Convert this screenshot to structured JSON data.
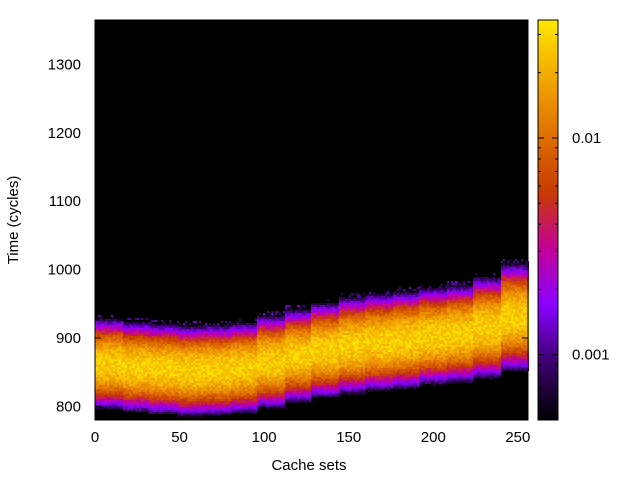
{
  "chart_data": {
    "type": "heatmap",
    "title": "",
    "xlabel": "Cache sets",
    "ylabel": "Time (cycles)",
    "xlim": [
      0,
      256
    ],
    "ylim": [
      780,
      1365
    ],
    "x_ticks": [
      0,
      50,
      100,
      150,
      200,
      250
    ],
    "y_ticks": [
      800,
      900,
      1000,
      1100,
      1200,
      1300
    ],
    "colorbar": {
      "scale": "log",
      "range": [
        0.0005,
        0.035
      ],
      "ticks": [
        {
          "value": 0.001,
          "label": "0.001"
        },
        {
          "value": 0.01,
          "label": "0.01"
        }
      ],
      "colormap": [
        "#000000",
        "#3c006e",
        "#8a00ff",
        "#c4009a",
        "#c83c00",
        "#e07000",
        "#f2a800",
        "#ffe800"
      ]
    },
    "background": "#000000",
    "distribution": {
      "description_of_values": "per-column time distribution: center (mode) and spread in cycles",
      "segments": [
        {
          "x": [
            0,
            16
          ],
          "center": 862,
          "spread": 42
        },
        {
          "x": [
            16,
            32
          ],
          "center": 857,
          "spread": 42
        },
        {
          "x": [
            32,
            48
          ],
          "center": 854,
          "spread": 42
        },
        {
          "x": [
            48,
            64
          ],
          "center": 852,
          "spread": 42
        },
        {
          "x": [
            64,
            80
          ],
          "center": 853,
          "spread": 42
        },
        {
          "x": [
            80,
            96
          ],
          "center": 856,
          "spread": 42
        },
        {
          "x": [
            96,
            112
          ],
          "center": 865,
          "spread": 43
        },
        {
          "x": [
            112,
            128
          ],
          "center": 874,
          "spread": 43
        },
        {
          "x": [
            128,
            144
          ],
          "center": 882,
          "spread": 44
        },
        {
          "x": [
            144,
            160
          ],
          "center": 889,
          "spread": 45
        },
        {
          "x": [
            160,
            176
          ],
          "center": 893,
          "spread": 45
        },
        {
          "x": [
            176,
            192
          ],
          "center": 897,
          "spread": 45
        },
        {
          "x": [
            192,
            208
          ],
          "center": 902,
          "spread": 45
        },
        {
          "x": [
            208,
            224
          ],
          "center": 906,
          "spread": 45
        },
        {
          "x": [
            224,
            240
          ],
          "center": 915,
          "spread": 47
        },
        {
          "x": [
            240,
            256
          ],
          "center": 930,
          "spread": 50
        }
      ]
    },
    "grid": false,
    "legend": "colorbar-right"
  }
}
